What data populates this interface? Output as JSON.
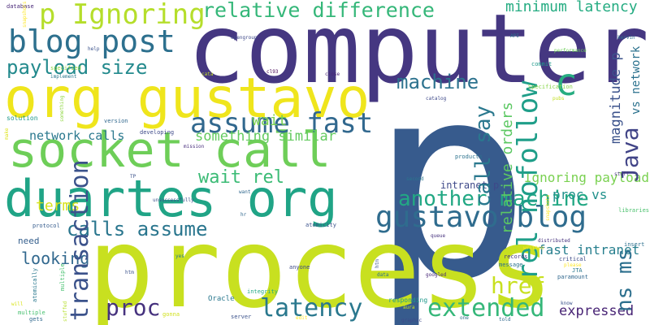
{
  "words": [
    {
      "text": "computer",
      "color": "#453781"
    },
    {
      "text": "p",
      "color": "#375b8d"
    },
    {
      "text": "process",
      "color": "#c8e020"
    },
    {
      "text": "org gustavo",
      "color": "#efe51c"
    },
    {
      "text": "socket call",
      "color": "#6ece58"
    },
    {
      "text": "duartes org",
      "color": "#20a486"
    },
    {
      "text": "gustavo blog",
      "color": "#2f6c8e"
    },
    {
      "text": "blog post",
      "color": "#2d708e"
    },
    {
      "text": "p Ignoring",
      "color": "#b5de2b"
    },
    {
      "text": "relative difference",
      "color": "#35b779"
    },
    {
      "text": "minimum latency",
      "color": "#25ac82"
    },
    {
      "text": "payload size",
      "color": "#238a8d"
    },
    {
      "text": "machine",
      "color": "#2c728e"
    },
    {
      "text": "c",
      "color": "#27ad81"
    },
    {
      "text": "rel nofollow",
      "color": "#1f9e89"
    },
    {
      "text": "call say",
      "color": "#2a788e"
    },
    {
      "text": "relative orders",
      "color": "#5cc863"
    },
    {
      "text": "Java",
      "color": "#414487"
    },
    {
      "text": "magnitude p",
      "color": "#3b528b"
    },
    {
      "text": "assume fast",
      "color": "#31688e"
    },
    {
      "text": "wait",
      "color": "#7ad151"
    },
    {
      "text": "something similar",
      "color": "#63cb5f"
    },
    {
      "text": "network calls",
      "color": "#2a788e"
    },
    {
      "text": "wait rel",
      "color": "#3bbb75"
    },
    {
      "text": "another machine",
      "color": "#22a884"
    },
    {
      "text": "terms",
      "color": "#d8e219"
    },
    {
      "text": "calls assume",
      "color": "#2a768e"
    },
    {
      "text": "Ignoring payload",
      "color": "#7ad151"
    },
    {
      "text": "proc vs",
      "color": "#21918c"
    },
    {
      "text": "fast intranet",
      "color": "#277f8e"
    },
    {
      "text": "vs network",
      "color": "#2c728e"
    },
    {
      "text": "href",
      "color": "#c8e020"
    },
    {
      "text": "looking",
      "color": "#31688e"
    },
    {
      "text": "ns ms",
      "color": "#2d708e"
    },
    {
      "text": "proc",
      "color": "#46327e"
    },
    {
      "text": "latency",
      "color": "#2a788e"
    },
    {
      "text": "extended",
      "color": "#35b779"
    },
    {
      "text": "expressed",
      "color": "#482475"
    },
    {
      "text": "intranet p",
      "color": "#3e4989"
    },
    {
      "text": "need",
      "color": "#355f8d"
    },
    {
      "text": "transaction",
      "color": "#3b528b"
    },
    {
      "text": "database",
      "color": "#482878"
    },
    {
      "text": "specified",
      "color": "#90d743"
    },
    {
      "text": "solution",
      "color": "#1f988b"
    },
    {
      "text": "developing",
      "color": "#3e4a89"
    },
    {
      "text": "mission",
      "color": "#472d7b"
    },
    {
      "text": "protocol",
      "color": "#365c8d"
    },
    {
      "text": "atomically",
      "color": "#2a788e"
    },
    {
      "text": "multiple",
      "color": "#46c06f"
    },
    {
      "text": "gets",
      "color": "#31688e"
    },
    {
      "text": "gonna",
      "color": "#d0e11c"
    },
    {
      "text": "Oracle",
      "color": "#2a788e"
    },
    {
      "text": "server",
      "color": "#3b528b"
    },
    {
      "text": "integrity",
      "color": "#22a884"
    },
    {
      "text": "anyone",
      "color": "#3e4a89"
    },
    {
      "text": "atomicity",
      "color": "#3b528b"
    },
    {
      "text": "records",
      "color": "#453781"
    },
    {
      "text": "message",
      "color": "#2c728e"
    },
    {
      "text": "critical",
      "color": "#3e4a89"
    },
    {
      "text": "distributed",
      "color": "#46327e"
    },
    {
      "text": "insert",
      "color": "#2d708e"
    },
    {
      "text": "JTA",
      "color": "#2a788e"
    },
    {
      "text": "paramount",
      "color": "#31688e"
    },
    {
      "text": "libraries",
      "color": "#4ac16d"
    },
    {
      "text": "stuff",
      "color": "#46327e"
    },
    {
      "text": "Specification",
      "color": "#86d549"
    },
    {
      "text": "commit",
      "color": "#1f988b"
    },
    {
      "text": "API",
      "color": "#2c728e"
    },
    {
      "text": "kervin",
      "color": "#2d708e"
    },
    {
      "text": "close",
      "color": "#482475"
    },
    {
      "text": "opengroup",
      "color": "#3e4989"
    },
    {
      "text": "help",
      "color": "#3b528b"
    },
    {
      "text": "version",
      "color": "#31688e"
    },
    {
      "text": "catalog",
      "color": "#3e4989"
    },
    {
      "text": "second",
      "color": "#2a788e"
    },
    {
      "text": "products",
      "color": "#2c728e"
    },
    {
      "text": "unsuccessfully",
      "color": "#3b528b"
    },
    {
      "text": "want",
      "color": "#31688e"
    },
    {
      "text": "queue",
      "color": "#46327e"
    },
    {
      "text": "yes",
      "color": "#2a788e"
    },
    {
      "text": "googled",
      "color": "#482878"
    },
    {
      "text": "told",
      "color": "#31688e"
    },
    {
      "text": "know",
      "color": "#3b528b"
    },
    {
      "text": "one",
      "color": "#2d708e"
    },
    {
      "text": "graphic",
      "color": "#3e4a89"
    },
    {
      "text": "stuffed",
      "color": "#b5de2b"
    },
    {
      "text": "responding",
      "color": "#1f988b"
    },
    {
      "text": "data",
      "color": "#2c728e"
    },
    {
      "text": "htm",
      "color": "#3b528b"
    },
    {
      "text": "implement",
      "color": "#2a788e"
    },
    {
      "text": "cl93",
      "color": "#440154"
    },
    {
      "text": "hr",
      "color": "#31688e"
    },
    {
      "text": "TP",
      "color": "#3b528b"
    },
    {
      "text": "make",
      "color": "#dde318"
    },
    {
      "text": "something",
      "color": "#90d743"
    },
    {
      "text": "performance",
      "color": "#6ece58"
    },
    {
      "text": "aura",
      "color": "#c8e020"
    },
    {
      "text": "written",
      "color": "#fde725"
    },
    {
      "text": "please",
      "color": "#fde725"
    },
    {
      "text": "pubs",
      "color": "#c2df23"
    },
    {
      "text": "cata",
      "color": "#c2df23"
    },
    {
      "text": "edit",
      "color": "#fde725"
    },
    {
      "text": "snapshots",
      "color": "#fde725"
    },
    {
      "text": "will",
      "color": "#d8e219"
    },
    {
      "text": "access",
      "color": "#d8e219"
    },
    {
      "text": "node",
      "color": "#dde318"
    },
    {
      "text": "xa",
      "color": "#dde318"
    }
  ]
}
